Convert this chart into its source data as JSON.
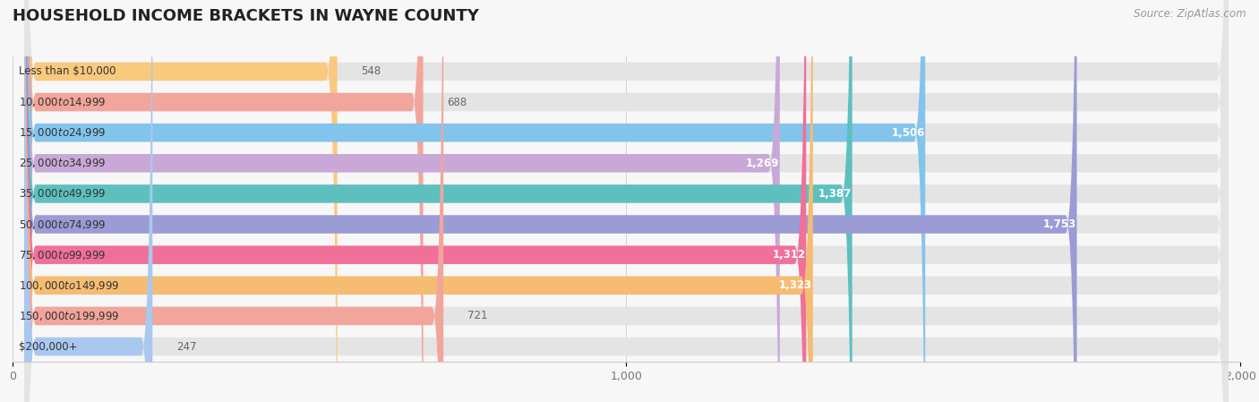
{
  "title": "HOUSEHOLD INCOME BRACKETS IN WAYNE COUNTY",
  "source": "Source: ZipAtlas.com",
  "categories": [
    "Less than $10,000",
    "$10,000 to $14,999",
    "$15,000 to $24,999",
    "$25,000 to $34,999",
    "$35,000 to $49,999",
    "$50,000 to $74,999",
    "$75,000 to $99,999",
    "$100,000 to $149,999",
    "$150,000 to $199,999",
    "$200,000+"
  ],
  "values": [
    548,
    688,
    1506,
    1269,
    1387,
    1753,
    1312,
    1323,
    721,
    247
  ],
  "bar_colors": [
    "#F9C97E",
    "#F2A59A",
    "#82C4EC",
    "#C9A8D8",
    "#5DC0BF",
    "#9B9BD6",
    "#F07099",
    "#F5BC72",
    "#F2A59A",
    "#A8C8F0"
  ],
  "xlim_max": 2000,
  "xticks": [
    0,
    1000,
    2000
  ],
  "background_color": "#f7f7f7",
  "bar_bg_color": "#e4e4e4",
  "title_fontsize": 13,
  "label_fontsize": 8.5,
  "value_fontsize": 8.5,
  "source_fontsize": 8.5,
  "value_threshold": 850
}
